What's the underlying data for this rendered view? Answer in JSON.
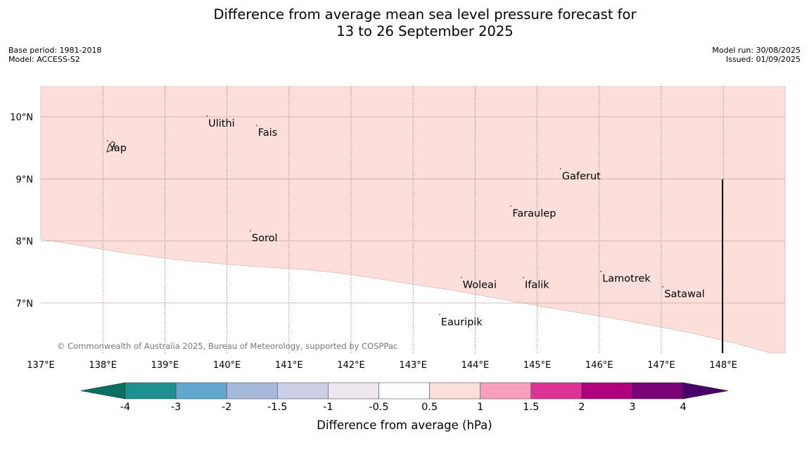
{
  "title_line1": "Difference from average mean sea level pressure forecast for",
  "title_line2": "13 to 26 September 2025",
  "meta": {
    "base_period": "Base period: 1981-2018",
    "model": "Model: ACCESS-S2",
    "model_run": "Model run: 30/08/2025",
    "issued": "Issued: 01/09/2025"
  },
  "map": {
    "lon_range": [
      137,
      149
    ],
    "lat_range": [
      6.3,
      10.5
    ],
    "lon_labels": [
      "137°E",
      "138°E",
      "139°E",
      "140°E",
      "141°E",
      "142°E",
      "143°E",
      "144°E",
      "145°E",
      "146°E",
      "147°E",
      "148°E"
    ],
    "lat_labels": [
      "10°N",
      "9°N",
      "8°N",
      "7°N"
    ],
    "anomaly_fill_color": "#fcdedb",
    "anomaly_band": "0.5 to 1",
    "places": [
      {
        "name": "Yap",
        "lon": 138.1,
        "lat": 9.5
      },
      {
        "name": "Ulithi",
        "lon": 139.7,
        "lat": 9.9
      },
      {
        "name": "Fais",
        "lon": 140.5,
        "lat": 9.75
      },
      {
        "name": "Gaferut",
        "lon": 145.4,
        "lat": 9.05
      },
      {
        "name": "Faraulep",
        "lon": 144.6,
        "lat": 8.45
      },
      {
        "name": "Sorol",
        "lon": 140.4,
        "lat": 8.05
      },
      {
        "name": "Lamotrek",
        "lon": 146.05,
        "lat": 7.4
      },
      {
        "name": "Woleai",
        "lon": 143.8,
        "lat": 7.3
      },
      {
        "name": "Ifalik",
        "lon": 144.8,
        "lat": 7.3
      },
      {
        "name": "Satawal",
        "lon": 147.05,
        "lat": 7.15
      },
      {
        "name": "Eauripik",
        "lon": 143.45,
        "lat": 6.7
      }
    ],
    "copyright": "© Commonwealth of Australia 2025, Bureau of Meteorology, supported by COSPPac"
  },
  "colorbar": {
    "label": "Difference from average (hPa)",
    "ticks": [
      "-4",
      "-3",
      "-2",
      "-1.5",
      "-1",
      "-0.5",
      "0.5",
      "1",
      "1.5",
      "2",
      "3",
      "4"
    ],
    "colors": [
      "#0b7064",
      "#1e9090",
      "#62a7cd",
      "#a6b9dd",
      "#cccfe6",
      "#ede8ef",
      "#ffffff",
      "#fcdedb",
      "#f79fbd",
      "#dd3497",
      "#ae017e",
      "#7a0177",
      "#49006a"
    ]
  }
}
